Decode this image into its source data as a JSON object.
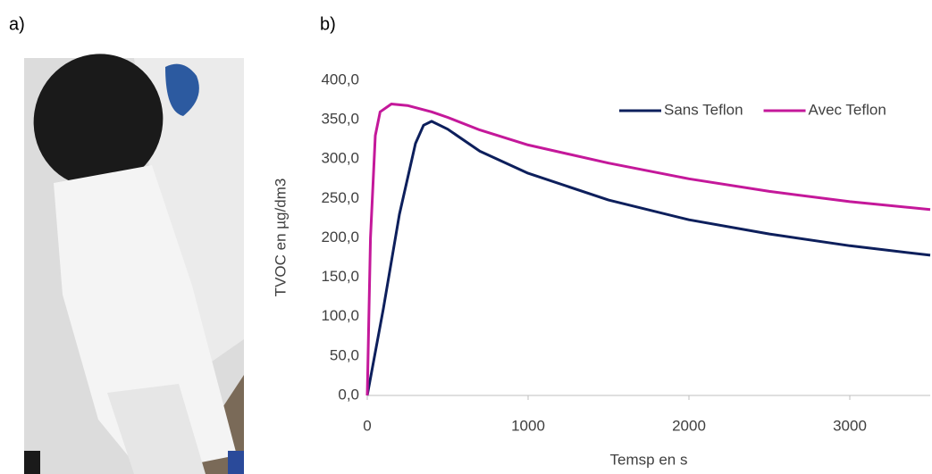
{
  "panel_labels": [
    "a)",
    "b)"
  ],
  "chart_data": {
    "type": "line",
    "ylabel": "TVOC en µg/dm3",
    "xlabel": "Temsp en s",
    "xlim": [
      0,
      3500
    ],
    "xticks": [
      0,
      1000,
      2000,
      3000
    ],
    "ylim": [
      0,
      400
    ],
    "yticks": [
      {
        "value": 0,
        "label": "0,0"
      },
      {
        "value": 50,
        "label": "50,0"
      },
      {
        "value": 100,
        "label": "100,0"
      },
      {
        "value": 150,
        "label": "150,0"
      },
      {
        "value": 200,
        "label": "200,0"
      },
      {
        "value": 250,
        "label": "250,0"
      },
      {
        "value": 300,
        "label": "300,0"
      },
      {
        "value": 350,
        "label": "350,0"
      },
      {
        "value": 400,
        "label": "400,0"
      }
    ],
    "grid": false,
    "legend": "top-right",
    "series": [
      {
        "name": "Sans Teflon",
        "color": "#0d1f5c",
        "x": [
          0,
          100,
          200,
          300,
          350,
          400,
          500,
          700,
          1000,
          1500,
          2000,
          2500,
          3000,
          3500
        ],
        "values": [
          0,
          110,
          230,
          320,
          343,
          348,
          338,
          310,
          282,
          248,
          223,
          205,
          190,
          178
        ]
      },
      {
        "name": "Avec Teflon",
        "color": "#c4189a",
        "x": [
          0,
          20,
          50,
          80,
          150,
          250,
          400,
          500,
          700,
          1000,
          1500,
          2000,
          2500,
          3000,
          3500
        ],
        "values": [
          0,
          200,
          330,
          360,
          370,
          368,
          360,
          353,
          337,
          318,
          295,
          275,
          259,
          246,
          236
        ]
      }
    ]
  }
}
